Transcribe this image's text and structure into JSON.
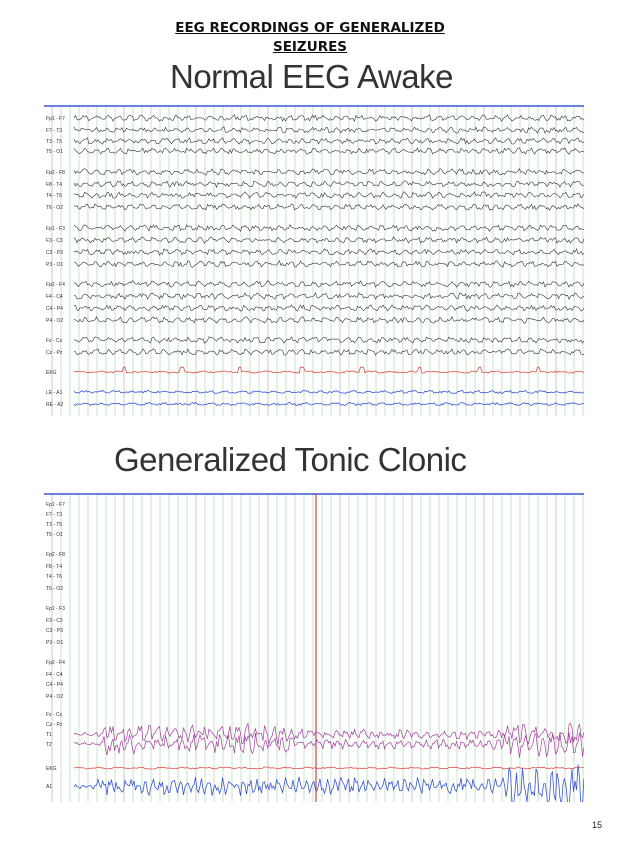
{
  "header": {
    "line1": "EEG  RECORDINGS OF GENERALIZED",
    "line2": "SEIZURES"
  },
  "panels": [
    {
      "title": "Normal EEG Awake",
      "channels": [
        "Fp1 - F7",
        "F7 - T3",
        "T3 - T5",
        "T5 - O1",
        "Fp2 - F8",
        "F8 - T4",
        "T4 - T6",
        "T6 - O2",
        "Fp1 - F3",
        "F3 - C3",
        "C3 - P3",
        "P3 - O1",
        "Fp2 - F4",
        "F4 - C4",
        "C4 - P4",
        "P4 - O2",
        "Fz - Cz",
        "Cz - Pz",
        "EKG",
        "LE - A1",
        "RE - A2"
      ]
    },
    {
      "title": "Generalized Tonic Clonic",
      "channels": [
        "Fp1 - F7",
        "F7 - T3",
        "T3 - T5",
        "T5 - O1",
        "Fp2 - F8",
        "F8 - T4",
        "T4 - T6",
        "T6 - O2",
        "Fp1 - F3",
        "F3 - C3",
        "C3 - P3",
        "P3 - O1",
        "Fp2 - F4",
        "F4 - C4",
        "C4 - P4",
        "P4 - O2",
        "Fz - Cz",
        "Cz - Pz",
        "T1",
        "T2",
        "EKG",
        "A1"
      ]
    }
  ],
  "page_number": "15",
  "colors": {
    "trace": "#333333",
    "grid_green": "#9ed69e",
    "grid_gray": "#c9c9c9",
    "baseline_blue": "#3b55d9",
    "ekg_red": "#e0504a",
    "emg_purple": "#a23ea0",
    "marker_red": "#d84040"
  }
}
